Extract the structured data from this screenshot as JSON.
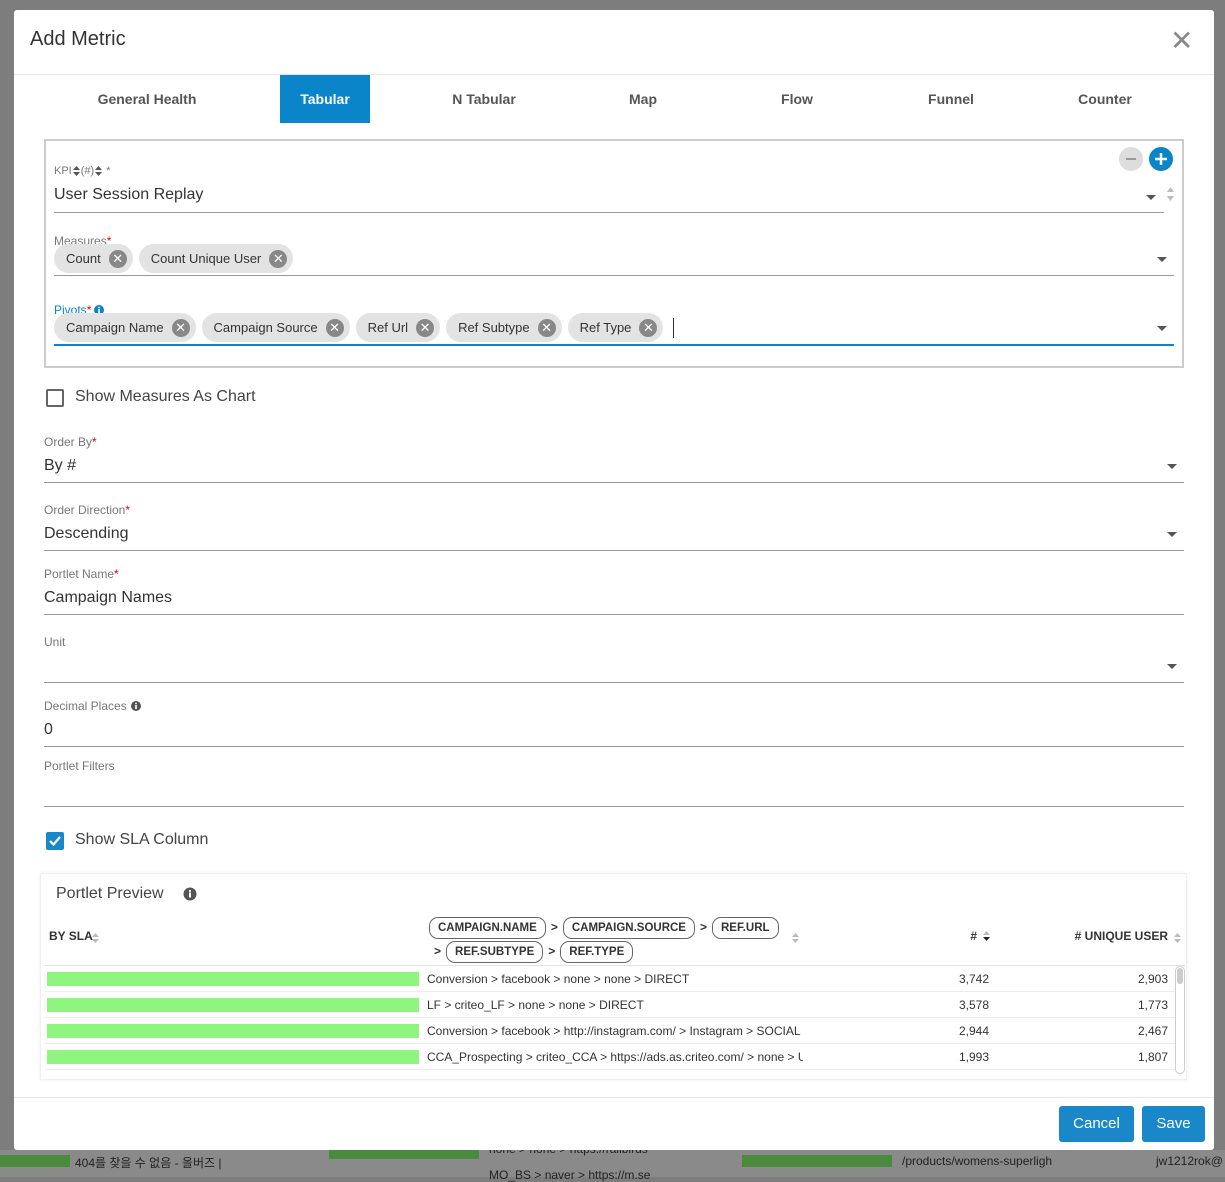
{
  "background": {
    "texts": [
      "404를 찾을 수 없음 - 올버즈 |",
      "none > none > https://railbirds",
      "MO_BS > naver > https://m.se",
      "/products/womens-superligh",
      "jw1212rok@"
    ]
  },
  "modal": {
    "title": "Add Metric",
    "tabs": [
      "General Health",
      "Tabular",
      "N Tabular",
      "Map",
      "Flow",
      "Funnel",
      "Counter"
    ],
    "active_tab": 1,
    "required_mark": "*",
    "kpi": {
      "label": "KPI",
      "unit_label": "(#)",
      "value": "User Session Replay"
    },
    "measures": {
      "label": "Measures",
      "chips": [
        "Count",
        "Count Unique User"
      ]
    },
    "pivots": {
      "label": "Pivots",
      "chips": [
        "Campaign Name",
        "Campaign Source",
        "Ref Url",
        "Ref Subtype",
        "Ref Type"
      ]
    },
    "show_measures_as_chart": {
      "label": "Show Measures As Chart",
      "checked": false
    },
    "fields": [
      {
        "label": "Order By",
        "required": true,
        "value": "By #",
        "dropdown": true
      },
      {
        "label": "Order Direction",
        "required": true,
        "value": "Descending",
        "dropdown": true
      },
      {
        "label": "Portlet Name",
        "required": true,
        "value": "Campaign Names",
        "dropdown": false
      },
      {
        "label": "Unit",
        "required": false,
        "dropdown": true
      },
      {
        "label": "Decimal Places",
        "required": false,
        "info": true,
        "value": "0",
        "dropdown": false
      },
      {
        "label": "Portlet Filters",
        "required": false,
        "dropdown": false
      }
    ],
    "show_sla_column": {
      "label": "Show SLA Column",
      "checked": true
    },
    "preview": {
      "title": "Portlet Preview",
      "sla_column": "BY SLA",
      "pivot_tags": [
        "CAMPAIGN.NAME",
        "CAMPAIGN.SOURCE",
        "REF.URL",
        "REF.SUBTYPE",
        "REF.TYPE"
      ],
      "separator": ">",
      "count_column": "#",
      "unique_column": "# UNIQUE USER",
      "rows": [
        [
          "Conversion > facebook > none > none > DIRECT",
          "3,742",
          "2,903"
        ],
        [
          "LF > criteo_LF > none > none > DIRECT",
          "3,578",
          "1,773"
        ],
        [
          "Conversion > facebook > http://instagram.com/ > Instagram > SOCIAL",
          "2,944",
          "2,467"
        ],
        [
          "CCA_Prospecting > criteo_CCA > https://ads.as.criteo.com/ > none > UNKNOWN",
          "1,993",
          "1,807"
        ]
      ]
    },
    "buttons": [
      "Cancel",
      "Save"
    ]
  }
}
